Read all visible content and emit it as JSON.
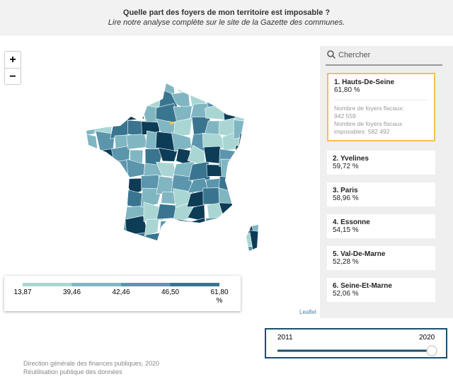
{
  "header": {
    "title": "Quelle part des foyers de mon territoire est imposable ?",
    "subtitle": "Lire notre analyse complète sur le site de la Gazette des communes."
  },
  "zoom": {
    "in": "+",
    "out": "−"
  },
  "search": {
    "placeholder": "Chercher"
  },
  "list": [
    {
      "name": "1. Hauts-De-Seine",
      "value": "61,80 %",
      "details": [
        "Nombre de foyers fiscaux:",
        "942 559",
        "Nombre de foyers fiscaux",
        "imposables: 582 492"
      ]
    },
    {
      "name": "2. Yvelines",
      "value": "59,72 %"
    },
    {
      "name": "3. Paris",
      "value": "58,96 %"
    },
    {
      "name": "4. Essonne",
      "value": "54,15 %"
    },
    {
      "name": "5. Val-De-Marne",
      "value": "52,28 %"
    },
    {
      "name": "6. Seine-Et-Marne",
      "value": "52,06 %"
    }
  ],
  "legend": {
    "breaks": [
      "13,87",
      "39,46",
      "42,46",
      "46,50",
      "61,80"
    ],
    "unit": "%",
    "colors": [
      "#a9d6d3",
      "#80b6c2",
      "#5b96ad",
      "#3a7590",
      "#0d3c56"
    ]
  },
  "attribution": "Leaflet",
  "slider": {
    "start": "2011",
    "end": "2020"
  },
  "footer": [
    "Direction générale des finances publiques, 2020",
    "Réutilisation publique des données"
  ]
}
